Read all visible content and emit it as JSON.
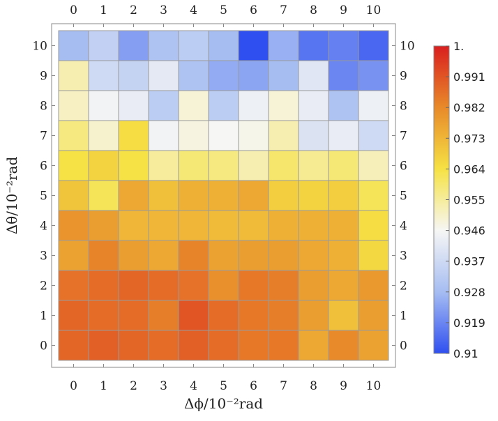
{
  "chart_data": {
    "type": "heatmap",
    "title": "",
    "xlabel": "Δϕ/10⁻²rad",
    "ylabel": "Δθ/10⁻²rad",
    "x_ticks": [
      "0",
      "1",
      "2",
      "3",
      "4",
      "5",
      "6",
      "7",
      "8",
      "9",
      "10"
    ],
    "y_ticks": [
      "0",
      "1",
      "2",
      "3",
      "4",
      "5",
      "6",
      "7",
      "8",
      "9",
      "10"
    ],
    "color_range": [
      0.91,
      1.0
    ],
    "colorbar_ticks": [
      "0.91",
      "0.919",
      "0.928",
      "0.937",
      "0.946",
      "0.955",
      "0.964",
      "0.973",
      "0.982",
      "0.991",
      "1."
    ],
    "colormap": [
      "#2f4ff0",
      "#a6bdf2",
      "#f6f6f4",
      "#f6e244",
      "#e88a2a",
      "#d91f1f"
    ],
    "grid": false,
    "legend": "colorbar-right",
    "z": [
      [
        0.988,
        0.989,
        0.988,
        0.987,
        0.989,
        0.987,
        0.985,
        0.985,
        0.976,
        0.982,
        0.977
      ],
      [
        0.988,
        0.987,
        0.987,
        0.984,
        0.991,
        0.987,
        0.985,
        0.984,
        0.978,
        0.971,
        0.978
      ],
      [
        0.986,
        0.987,
        0.988,
        0.987,
        0.986,
        0.981,
        0.985,
        0.984,
        0.978,
        0.976,
        0.979
      ],
      [
        0.977,
        0.983,
        0.978,
        0.976,
        0.983,
        0.977,
        0.978,
        0.978,
        0.976,
        0.974,
        0.966
      ],
      [
        0.98,
        0.978,
        0.973,
        0.973,
        0.973,
        0.972,
        0.972,
        0.974,
        0.974,
        0.974,
        0.965
      ],
      [
        0.97,
        0.962,
        0.976,
        0.971,
        0.974,
        0.974,
        0.976,
        0.968,
        0.967,
        0.968,
        0.962
      ],
      [
        0.964,
        0.967,
        0.964,
        0.955,
        0.959,
        0.958,
        0.953,
        0.96,
        0.956,
        0.959,
        0.952
      ],
      [
        0.958,
        0.95,
        0.965,
        0.945,
        0.948,
        0.946,
        0.947,
        0.953,
        0.94,
        0.943,
        0.937
      ],
      [
        0.951,
        0.945,
        0.943,
        0.933,
        0.949,
        0.933,
        0.944,
        0.949,
        0.943,
        0.93,
        0.944
      ],
      [
        0.953,
        0.937,
        0.935,
        0.942,
        0.93,
        0.925,
        0.924,
        0.928,
        0.941,
        0.919,
        0.921
      ],
      [
        0.928,
        0.934,
        0.923,
        0.93,
        0.933,
        0.928,
        0.91,
        0.926,
        0.916,
        0.918,
        0.914
      ]
    ]
  }
}
